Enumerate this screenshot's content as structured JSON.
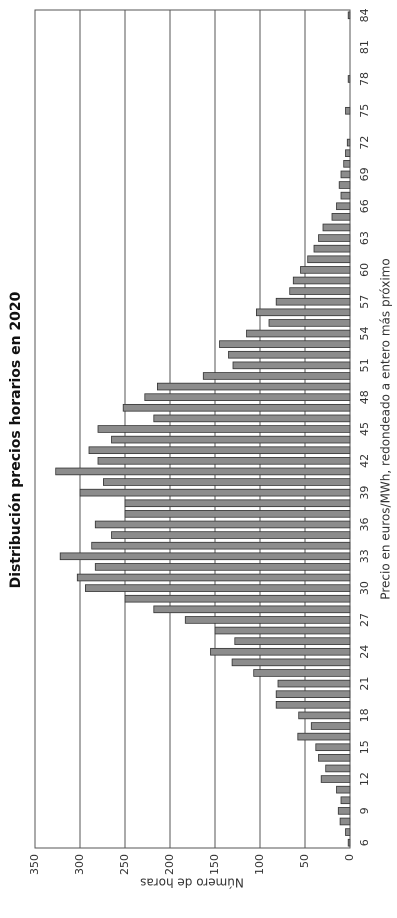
{
  "chart_data": {
    "type": "bar",
    "title": "Distribución precios horarios en 2020",
    "x_label": "Precio en euros/MWh, redondeado a entero más próximo",
    "y_label": "Número de horas",
    "categories": [
      "6",
      null,
      null,
      "9",
      null,
      null,
      "12",
      null,
      null,
      "15",
      null,
      null,
      "18",
      null,
      null,
      "21",
      null,
      null,
      "24",
      null,
      null,
      "27",
      null,
      null,
      "30",
      null,
      null,
      "33",
      null,
      null,
      "36",
      null,
      null,
      "39",
      null,
      null,
      "42",
      null,
      null,
      "45",
      null,
      null,
      "48",
      null,
      null,
      "51",
      null,
      null,
      "54",
      null,
      null,
      "57",
      null,
      null,
      "60",
      null,
      null,
      "63",
      null,
      null,
      "66",
      null,
      null,
      "69",
      null,
      null,
      "72",
      null,
      null,
      "75",
      null,
      null,
      "78",
      null,
      null,
      "81",
      null,
      null,
      "84"
    ],
    "values": [
      2,
      5,
      11,
      13,
      10,
      15,
      32,
      27,
      35,
      38,
      58,
      43,
      57,
      82,
      82,
      80,
      107,
      131,
      155,
      128,
      150,
      183,
      218,
      250,
      294,
      303,
      283,
      322,
      287,
      265,
      283,
      250,
      250,
      300,
      274,
      327,
      280,
      290,
      265,
      280,
      218,
      252,
      228,
      214,
      163,
      130,
      135,
      145,
      115,
      90,
      104,
      82,
      67,
      63,
      55,
      47,
      40,
      35,
      30,
      20,
      15,
      10,
      12,
      10,
      7,
      5,
      3,
      0,
      0,
      5,
      0,
      0,
      2,
      0,
      0,
      0,
      0,
      0,
      2
    ],
    "color": "#8c8c8c",
    "ylim": [
      0,
      350
    ],
    "yticks": [
      0,
      50,
      100,
      150,
      200,
      250,
      300,
      350
    ],
    "grid": true
  }
}
